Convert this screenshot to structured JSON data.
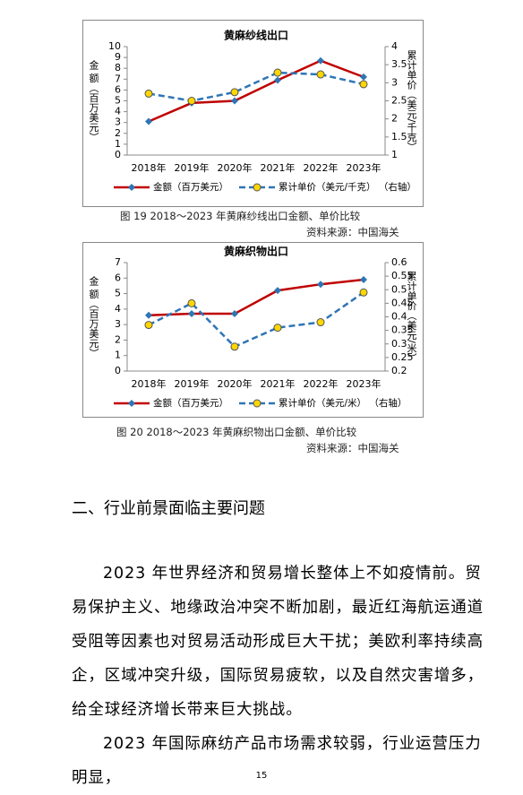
{
  "chart_data": [
    {
      "type": "line",
      "title": "黄麻纱线出口",
      "categories": [
        "2018年",
        "2019年",
        "2020年",
        "2021年",
        "2022年",
        "2023年"
      ],
      "ylabel": "金 额（百万美元）",
      "y2label": "累计单价（美元/千克）",
      "ylim": [
        0,
        10
      ],
      "yticks": [
        0,
        1,
        2,
        3,
        4,
        5,
        6,
        7,
        8,
        9,
        10
      ],
      "y2lim": [
        1,
        4
      ],
      "y2ticks": [
        1,
        1.5,
        2,
        2.5,
        3,
        3.5,
        4
      ],
      "series": [
        {
          "name": "金额（百万美元）",
          "color": "#c00000",
          "marker_color": "#2e75b6",
          "values": [
            3.1,
            4.8,
            5.0,
            6.9,
            8.7,
            7.2
          ]
        },
        {
          "name": "累计单价（美元/千克）  （右轴）",
          "color": "#2e75b6",
          "marker_color": "#ffd700",
          "dashed": true,
          "axis": "y2",
          "values": [
            2.7,
            2.5,
            2.74,
            3.28,
            3.23,
            2.96
          ]
        }
      ]
    },
    {
      "type": "line",
      "title": "黄麻织物出口",
      "categories": [
        "2018年",
        "2019年",
        "2020年",
        "2021年",
        "2022年",
        "2023年"
      ],
      "ylabel": "金 额（百万美元）",
      "y2label": "累计单价（美元/米）",
      "ylim": [
        0,
        7
      ],
      "yticks": [
        0,
        1,
        2,
        3,
        4,
        5,
        6,
        7
      ],
      "y2lim": [
        0.2,
        0.6
      ],
      "y2ticks": [
        0.2,
        0.25,
        0.3,
        0.35,
        0.4,
        0.45,
        0.5,
        0.55,
        0.6
      ],
      "series": [
        {
          "name": "金额（百万美元）",
          "color": "#c00000",
          "marker_color": "#2e75b6",
          "values": [
            3.6,
            3.7,
            3.7,
            5.2,
            5.6,
            5.9
          ]
        },
        {
          "name": "累计单价（美元/米）  （右轴）",
          "color": "#2e75b6",
          "marker_color": "#ffd700",
          "dashed": true,
          "axis": "y2",
          "values": [
            0.37,
            0.45,
            0.29,
            0.36,
            0.38,
            0.49
          ]
        }
      ]
    }
  ],
  "captions": [
    {
      "figure": "图 19  2018～2023 年黄麻纱线出口金额、单价比较",
      "source": "资料来源：中国海关"
    },
    {
      "figure": "图 20   2018～2023 年黄麻织物出口金额、单价比较",
      "source": "资料来源：中国海关"
    }
  ],
  "heading": "二、行业前景面临主要问题",
  "paragraphs": [
    "2023 年世界经济和贸易增长整体上不如疫情前。贸易保护主义、地缘政治冲突不断加剧，最近红海航运通道受阻等因素也对贸易活动形成巨大干扰；美欧利率持续高企，区域冲突升级，国际贸易疲软，以及自然灾害增多，给全球经济增长带来巨大挑战。",
    "2023 年国际麻纺产品市场需求较弱，行业运营压力明显，"
  ],
  "page_number": "15"
}
